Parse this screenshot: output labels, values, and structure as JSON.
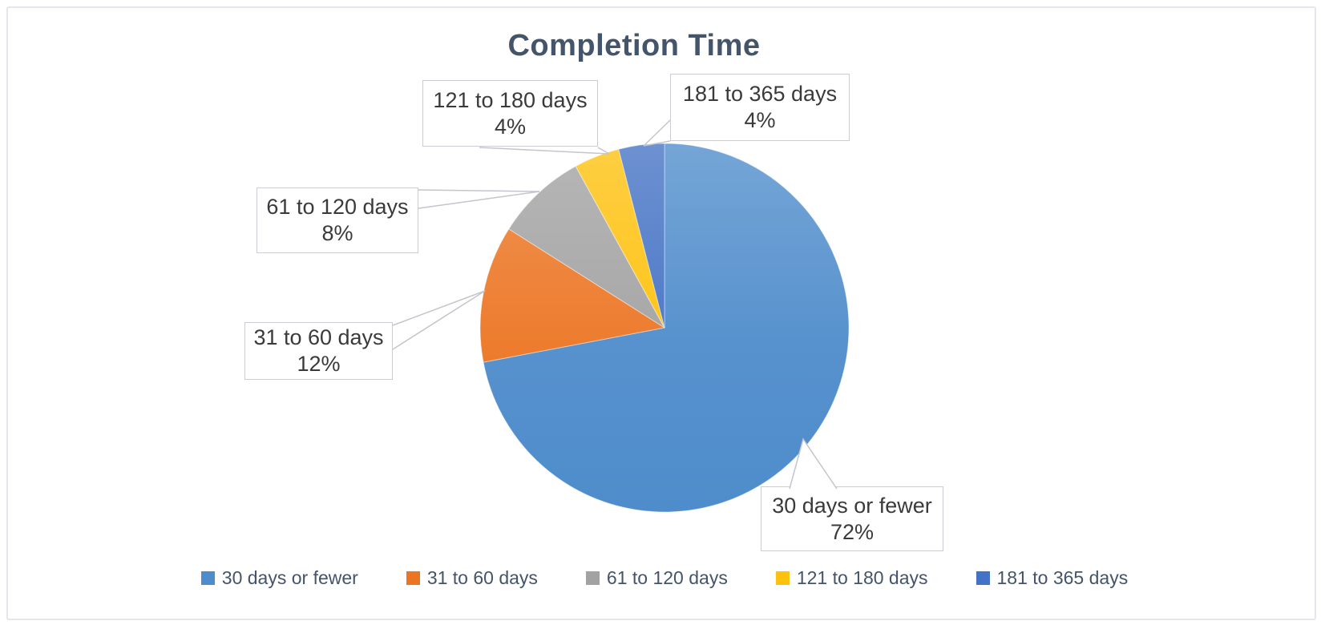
{
  "chart_data": {
    "type": "pie",
    "title": "Completion Time",
    "categories": [
      "30 days or fewer",
      "31 to 60 days",
      "61 to 120 days",
      "121 to 180 days",
      "181 to 365 days"
    ],
    "values": [
      72,
      12,
      8,
      4,
      4
    ],
    "unit": "percent",
    "colors": [
      "#4E8CCB",
      "#EC7523",
      "#A2A2A2",
      "#FEC10D",
      "#4472C4"
    ],
    "start_angle_deg": 0,
    "direction": "clockwise",
    "legend_position": "bottom",
    "labels_style": "outside-callout-boxes-with-leader-lines",
    "data_labels": [
      {
        "name": "30 days or fewer",
        "percent": "72%"
      },
      {
        "name": "31 to 60 days",
        "percent": "12%"
      },
      {
        "name": "61 to 120 days",
        "percent": "8%"
      },
      {
        "name": "121 to 180 days",
        "percent": "4%"
      },
      {
        "name": "181 to 365 days",
        "percent": "4%"
      }
    ],
    "title_color": "#44546A",
    "legend_text_color": "#44546A",
    "label_text_color": "#3A3A3A",
    "callout_border_color": "#CBCCD4",
    "leader_line_color": "#C4C5CD",
    "frame_border_color": "#E3E7ED"
  }
}
